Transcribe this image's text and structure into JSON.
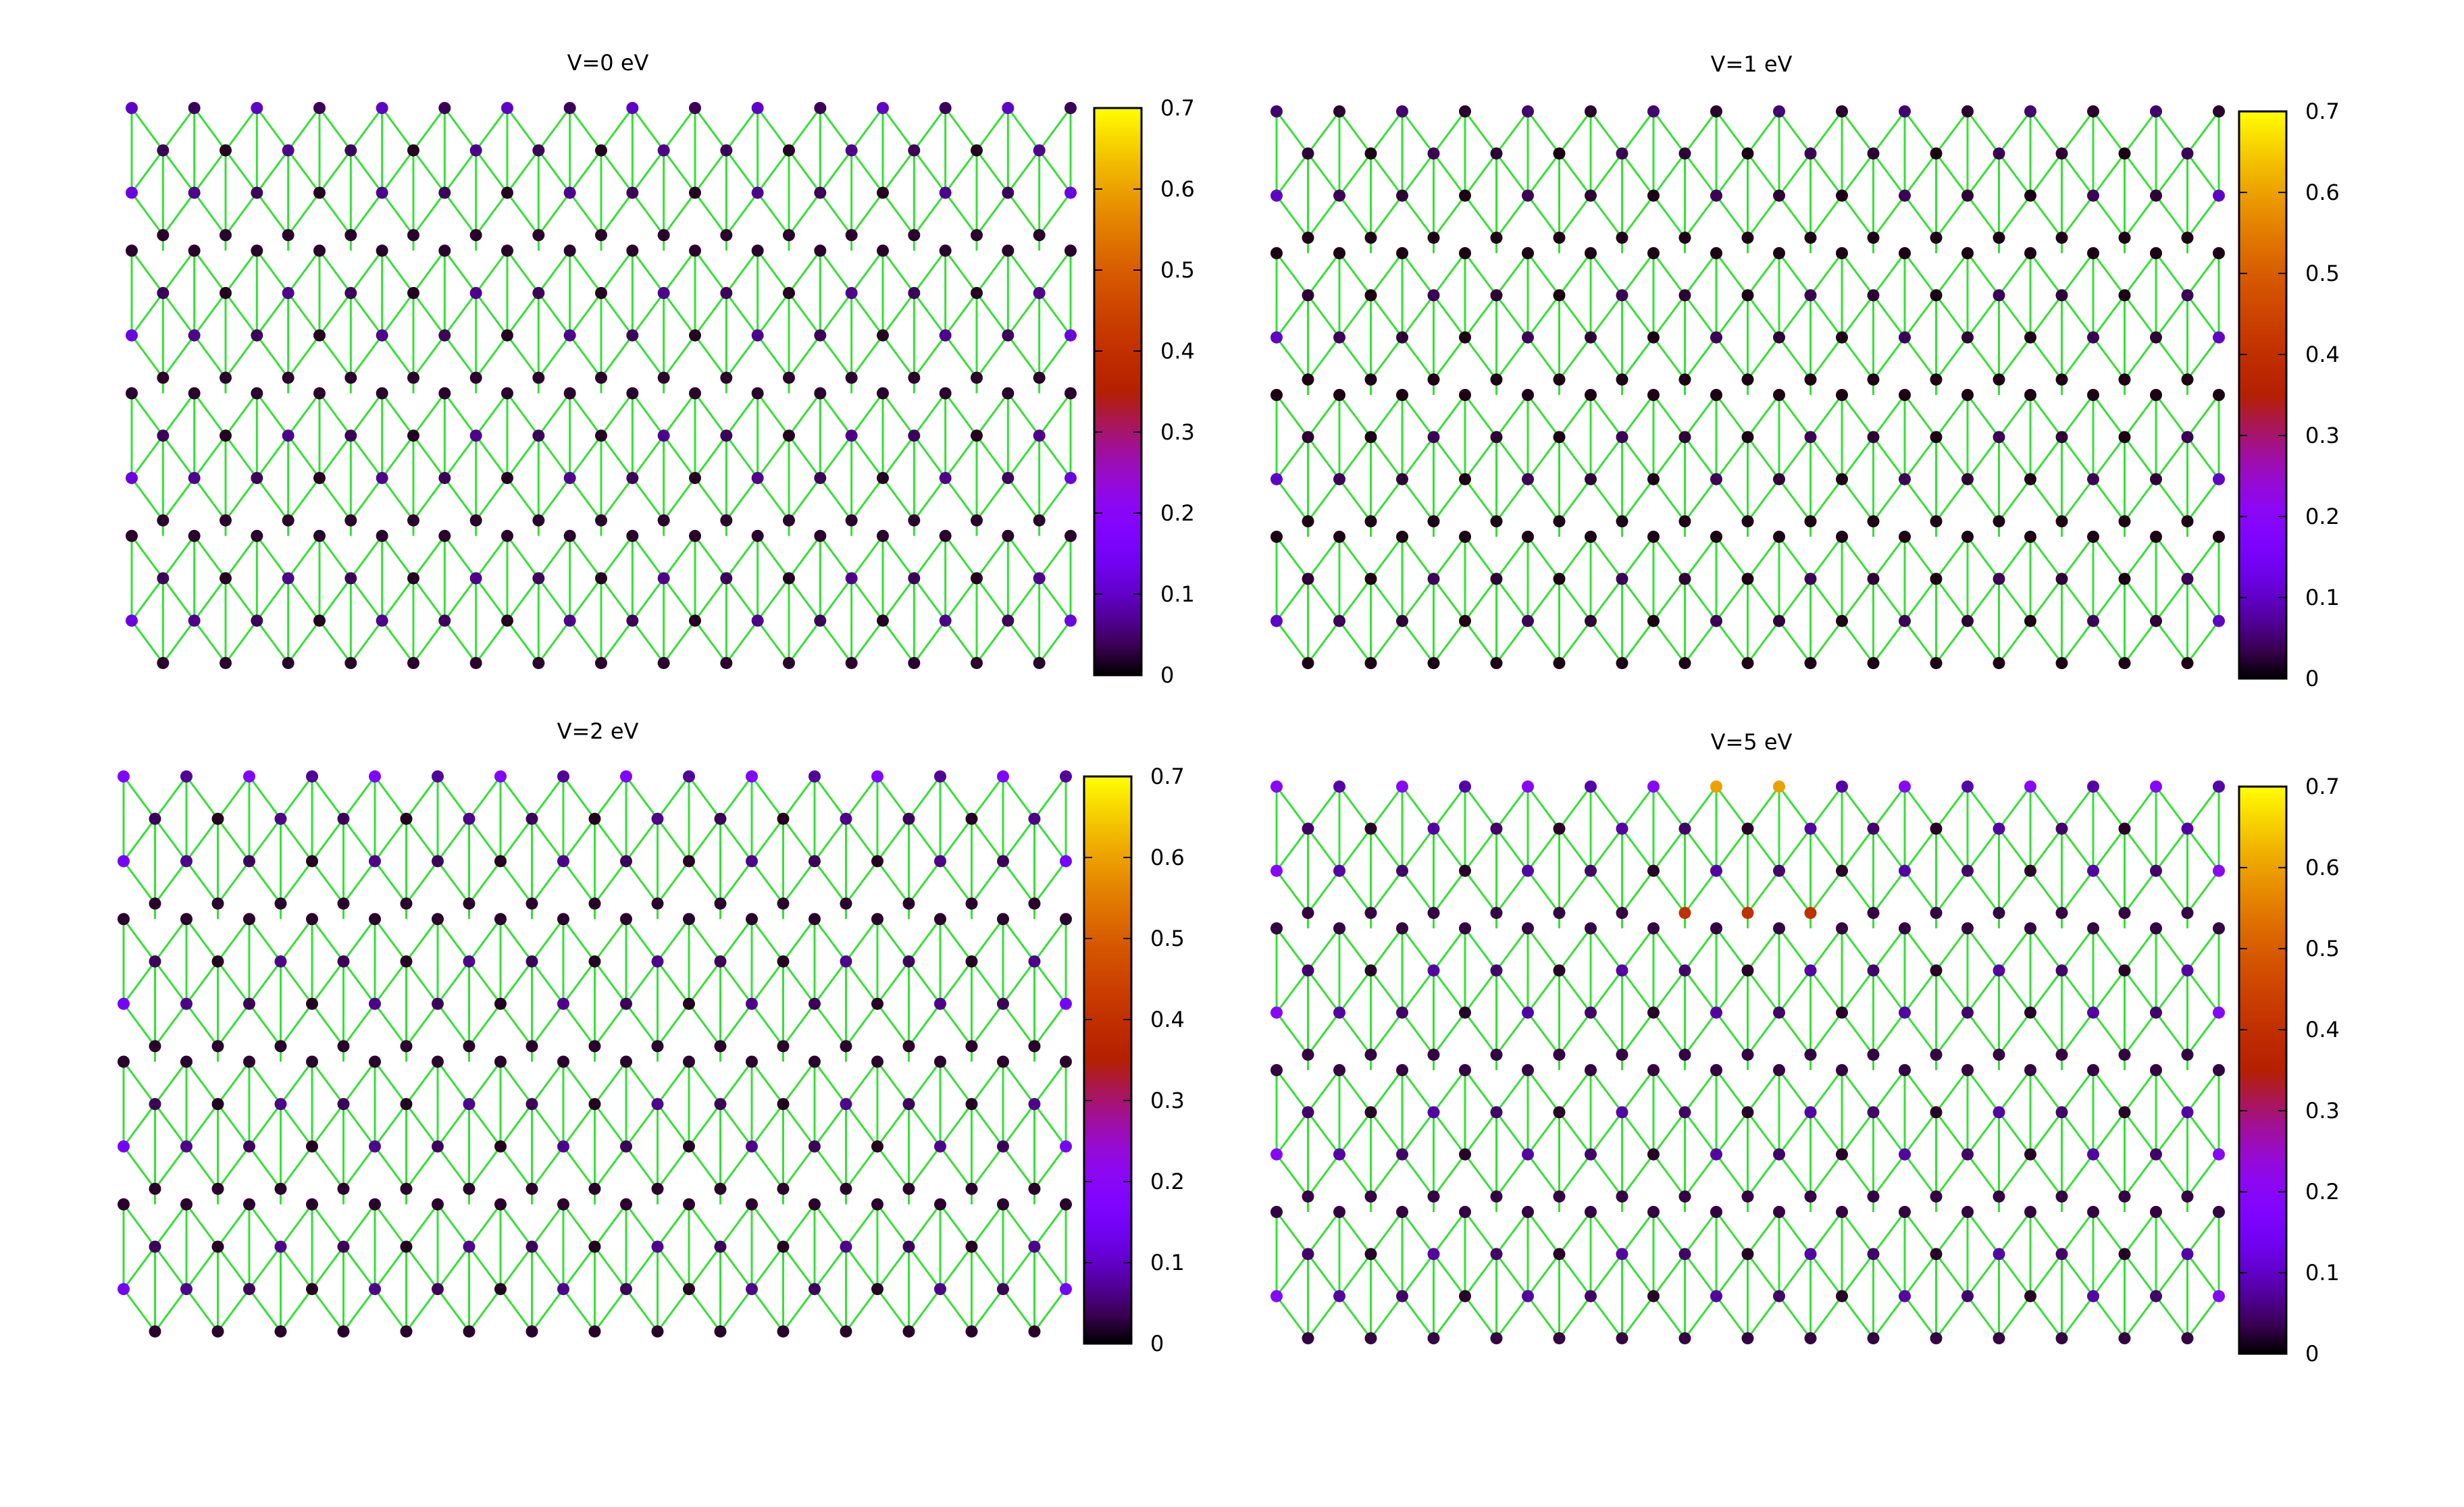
{
  "chart_data": [
    {
      "type": "heatmap",
      "title": "V=0 eV",
      "colorbar": {
        "min": 0,
        "max": 0.7,
        "ticks": [
          0,
          0.1,
          0.2,
          0.3,
          0.4,
          0.5,
          0.6,
          0.7
        ],
        "palette": "black-purple-red-orange-yellow"
      },
      "lattice": {
        "kind": "hexagonal",
        "strips": 4,
        "columns": 15
      },
      "site_values": {
        "top_row": 0.1,
        "edge_sites": 0.12,
        "inner_sites": 0.05,
        "interior_rows": 0.02
      },
      "max_value": 0.12
    },
    {
      "type": "heatmap",
      "title": "V=1 eV",
      "colorbar": {
        "min": 0,
        "max": 0.7,
        "ticks": [
          0,
          0.1,
          0.2,
          0.3,
          0.4,
          0.5,
          0.6,
          0.7
        ],
        "palette": "black-purple-red-orange-yellow"
      },
      "lattice": {
        "kind": "hexagonal",
        "strips": 4,
        "columns": 15
      },
      "site_values": {
        "top_row": 0.05,
        "edge_sites": 0.1,
        "inner_sites": 0.03,
        "interior_rows": 0.01
      },
      "max_value": 0.12
    },
    {
      "type": "heatmap",
      "title": "V=2 eV",
      "colorbar": {
        "min": 0,
        "max": 0.7,
        "ticks": [
          0,
          0.1,
          0.2,
          0.3,
          0.4,
          0.5,
          0.6,
          0.7
        ],
        "palette": "black-purple-red-orange-yellow"
      },
      "lattice": {
        "kind": "hexagonal",
        "strips": 4,
        "columns": 15
      },
      "site_values": {
        "top_row": 0.18,
        "edge_sites": 0.15,
        "inner_sites": 0.05,
        "interior_rows": 0.02
      },
      "max_value": 0.2
    },
    {
      "type": "heatmap",
      "title": "V=5 eV",
      "colorbar": {
        "min": 0,
        "max": 0.7,
        "ticks": [
          0,
          0.1,
          0.2,
          0.3,
          0.4,
          0.5,
          0.6,
          0.7
        ],
        "palette": "black-purple-red-orange-yellow"
      },
      "lattice": {
        "kind": "hexagonal",
        "strips": 4,
        "columns": 15
      },
      "site_values": {
        "top_row": 0.2,
        "edge_sites": 0.2,
        "inner_sites": 0.06,
        "interior_rows": 0.03
      },
      "max_value": 0.6,
      "hot_sites": [
        0.6,
        0.6,
        0.4,
        0.4,
        0.4
      ]
    }
  ],
  "colors": {
    "bond": "#33e233",
    "background": "#ffffff"
  }
}
